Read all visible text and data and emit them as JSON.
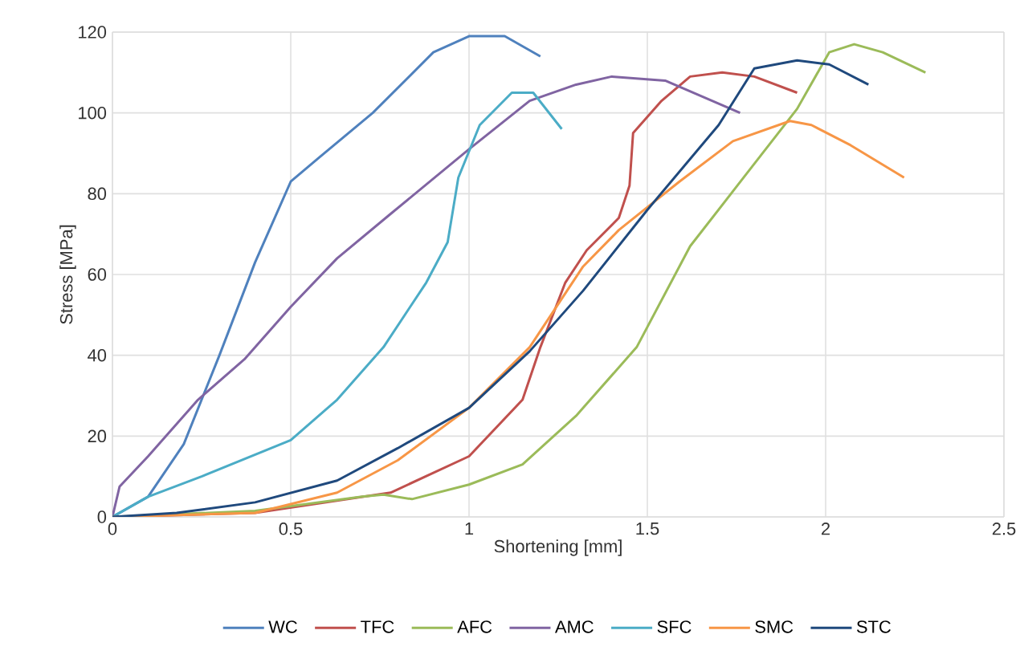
{
  "chart_data": {
    "type": "line",
    "xlabel": "Shortening [mm]",
    "ylabel": "Stress [MPa]",
    "xlim": [
      0,
      2.5
    ],
    "ylim": [
      0,
      120
    ],
    "xticks": [
      0,
      0.5,
      1,
      1.5,
      2,
      2.5
    ],
    "yticks": [
      0,
      20,
      40,
      60,
      80,
      100,
      120
    ],
    "grid": true,
    "legend": "bottom",
    "marker": "none",
    "line_style": "solid",
    "series": [
      {
        "name": "WC",
        "color": "#4f81bd",
        "x": [
          0,
          0.1,
          0.2,
          0.3,
          0.4,
          0.5,
          0.58,
          0.73,
          0.9,
          1.0,
          1.1,
          1.2
        ],
        "values": [
          0,
          5,
          18,
          40,
          63,
          83,
          89,
          100,
          115,
          119,
          119,
          114
        ]
      },
      {
        "name": "TFC",
        "color": "#c0504d",
        "x": [
          0,
          0.4,
          0.78,
          1.0,
          1.15,
          1.2,
          1.27,
          1.33,
          1.42,
          1.45,
          1.46,
          1.54,
          1.62,
          1.71,
          1.8,
          1.92
        ],
        "values": [
          0,
          1,
          6,
          15,
          29,
          42,
          58,
          66,
          74,
          82,
          95,
          103,
          109,
          110,
          109,
          105
        ]
      },
      {
        "name": "AFC",
        "color": "#9bbb59",
        "x": [
          0,
          0.4,
          0.7,
          0.76,
          0.84,
          1.0,
          1.15,
          1.3,
          1.47,
          1.62,
          1.77,
          1.92,
          2.01,
          2.08,
          2.16,
          2.28
        ],
        "values": [
          0,
          1.5,
          5,
          5.5,
          4.4,
          8,
          13,
          25,
          42,
          67,
          84,
          101,
          115,
          117,
          115,
          110
        ]
      },
      {
        "name": "AMC",
        "color": "#8064a2",
        "x": [
          0,
          0.02,
          0.1,
          0.24,
          0.37,
          0.5,
          0.63,
          0.78,
          1.0,
          1.17,
          1.3,
          1.4,
          1.55,
          1.76
        ],
        "values": [
          0,
          7.5,
          15,
          29,
          39,
          52,
          64,
          75,
          91,
          103,
          107,
          109,
          108,
          100
        ]
      },
      {
        "name": "SFC",
        "color": "#4bacc6",
        "x": [
          0,
          0.1,
          0.25,
          0.5,
          0.63,
          0.76,
          0.88,
          0.94,
          0.97,
          1.03,
          1.12,
          1.18,
          1.26
        ],
        "values": [
          0,
          5,
          10,
          19,
          29,
          42,
          58,
          68,
          84,
          97,
          105,
          105,
          96
        ]
      },
      {
        "name": "SMC",
        "color": "#f79646",
        "x": [
          0,
          0.4,
          0.63,
          0.8,
          1.0,
          1.17,
          1.32,
          1.42,
          1.59,
          1.74,
          1.9,
          1.96,
          2.07,
          2.22
        ],
        "values": [
          0,
          1,
          6,
          14,
          27,
          42,
          62,
          71,
          83,
          93,
          98,
          97,
          92,
          84
        ]
      },
      {
        "name": "STC",
        "color": "#1f497d",
        "x": [
          0,
          0.18,
          0.4,
          0.63,
          0.8,
          1.0,
          1.17,
          1.32,
          1.5,
          1.7,
          1.8,
          1.92,
          2.01,
          2.12
        ],
        "values": [
          0,
          1,
          3.6,
          9,
          17,
          27,
          41,
          56,
          76,
          97,
          111,
          113,
          112,
          107
        ]
      }
    ]
  }
}
